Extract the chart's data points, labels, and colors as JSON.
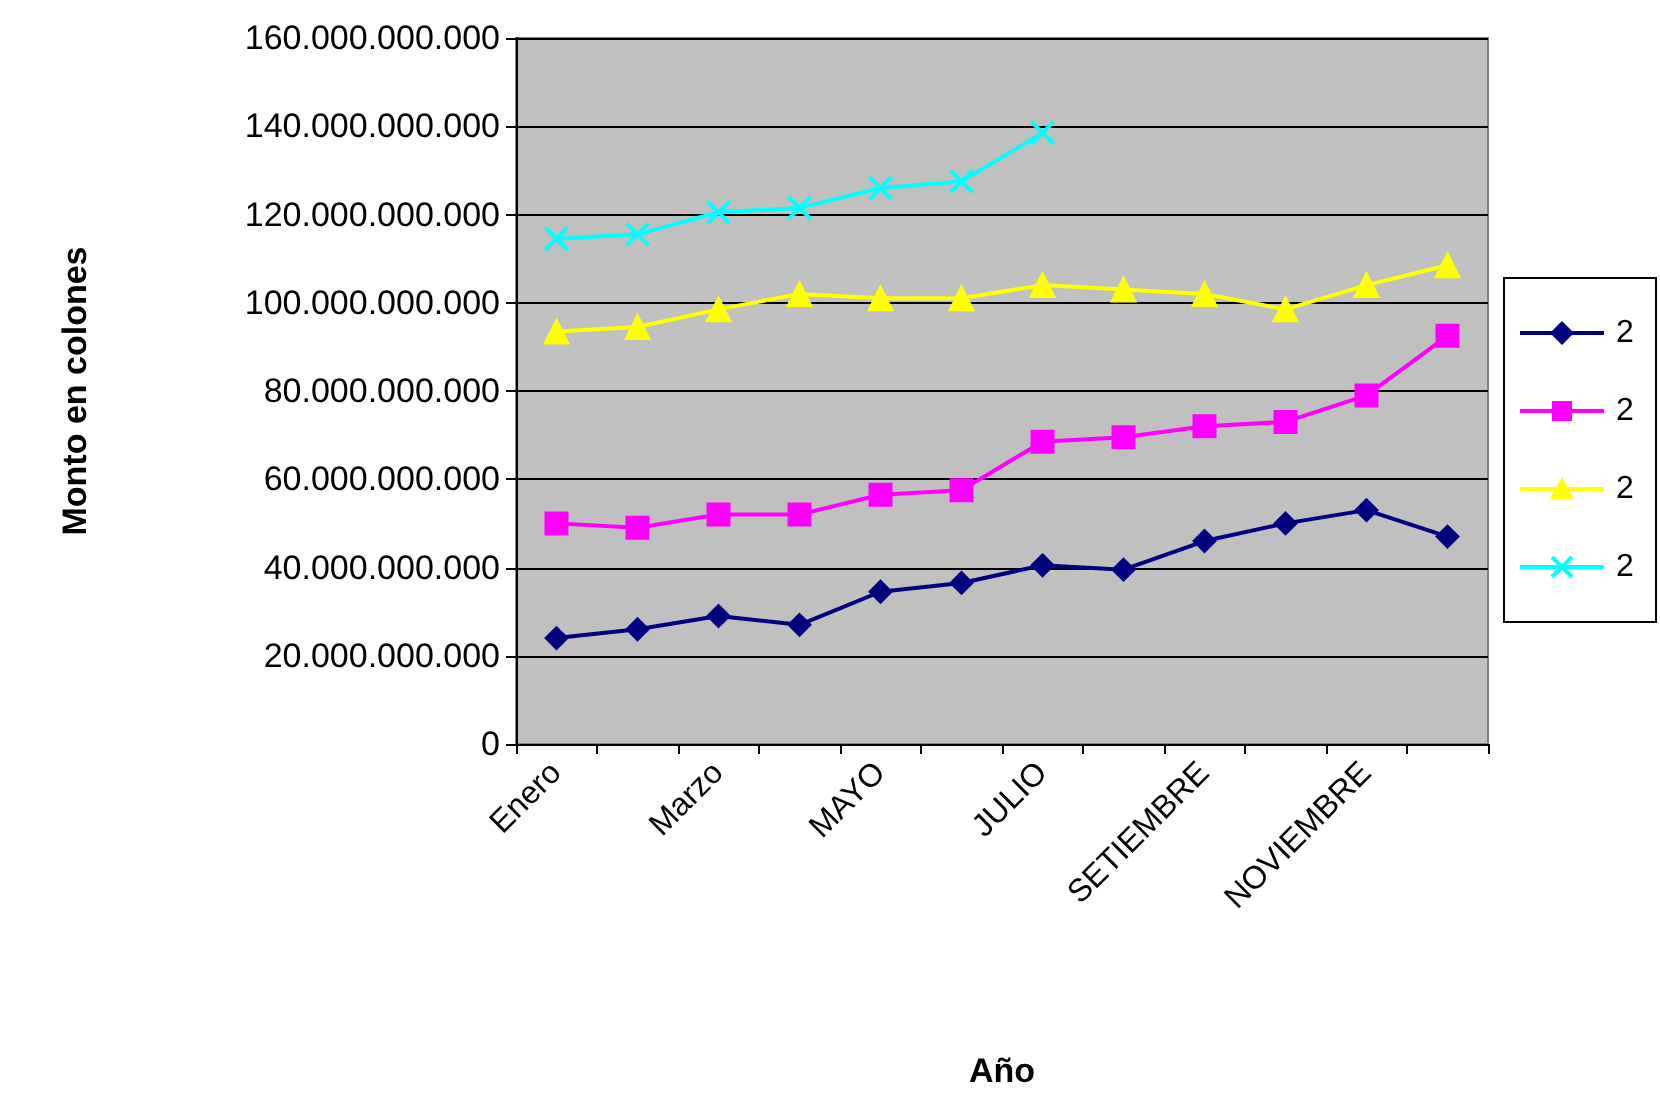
{
  "chart_data": {
    "type": "line",
    "xlabel": "Año",
    "ylabel": "Monto en colones",
    "categories": [
      "Enero",
      null,
      "Marzo",
      null,
      "MAYO",
      null,
      "JULIO",
      null,
      "SETIEMBRE",
      null,
      "NOVIEMBRE",
      null
    ],
    "series": [
      {
        "name": "2",
        "color": "#000080",
        "marker": "diamond",
        "values": [
          24000000000,
          26000000000,
          29000000000,
          27000000000,
          34500000000,
          36500000000,
          40500000000,
          39500000000,
          46000000000,
          50000000000,
          53000000000,
          47000000000
        ]
      },
      {
        "name": "2",
        "color": "#ff00ff",
        "marker": "square",
        "values": [
          50000000000,
          49000000000,
          52000000000,
          52000000000,
          56500000000,
          57500000000,
          68500000000,
          69500000000,
          72000000000,
          73000000000,
          79000000000,
          92500000000
        ]
      },
      {
        "name": "2",
        "color": "#ffff00",
        "marker": "triangle",
        "values": [
          93500000000,
          94500000000,
          98500000000,
          102000000000,
          101000000000,
          101000000000,
          104000000000,
          103000000000,
          102000000000,
          98500000000,
          104000000000,
          108500000000
        ]
      },
      {
        "name": "2",
        "color": "#00ffff",
        "marker": "cross",
        "values": [
          114500000000,
          115500000000,
          120500000000,
          121500000000,
          126000000000,
          127500000000,
          138500000000,
          null,
          null,
          null,
          null,
          null
        ]
      }
    ],
    "ylim": [
      0,
      160000000000
    ],
    "yticks": [
      {
        "value": 0,
        "label": "0"
      },
      {
        "value": 20000000000,
        "label": "20.000.000.000"
      },
      {
        "value": 40000000000,
        "label": "40.000.000.000"
      },
      {
        "value": 60000000000,
        "label": "60.000.000.000"
      },
      {
        "value": 80000000000,
        "label": "80.000.000.000"
      },
      {
        "value": 100000000000,
        "label": "100.000.000.000"
      },
      {
        "value": 120000000000,
        "label": "120.000.000.000"
      },
      {
        "value": 140000000000,
        "label": "140.000.000.000"
      },
      {
        "value": 160000000000,
        "label": "160.000.000.000"
      }
    ],
    "grid": "y",
    "legend": "right",
    "line_style": "solid"
  }
}
